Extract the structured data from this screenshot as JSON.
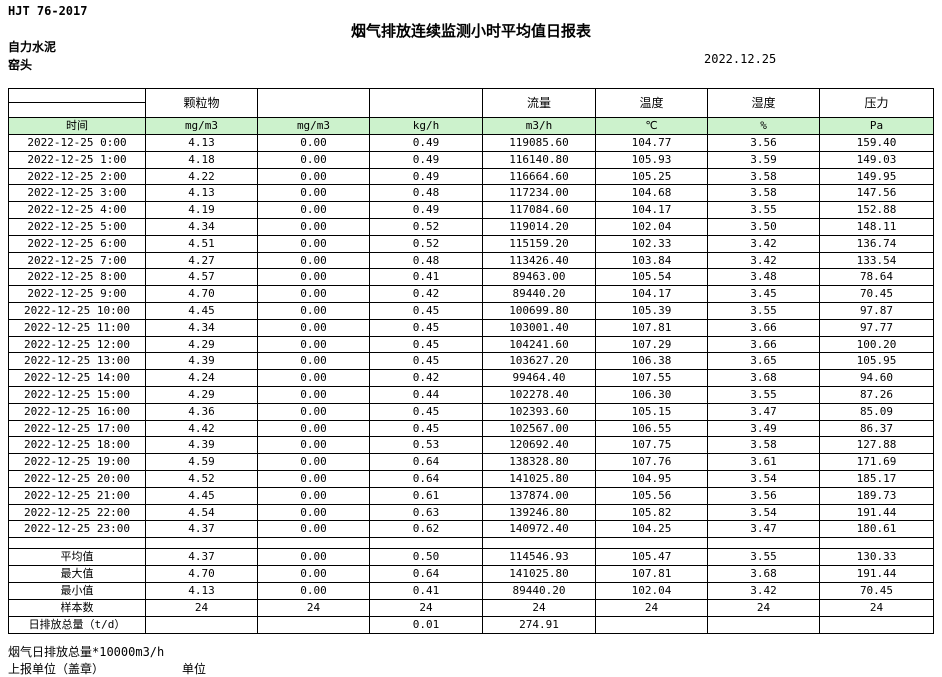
{
  "header": {
    "doc_code": "HJT  76-2017",
    "title": "烟气排放连续监测小时平均值日报表",
    "company": "自力水泥",
    "station": "窑头",
    "date": "2022.12.25"
  },
  "colors": {
    "units_row_green": "#ccf2cc",
    "grid_border": "#000000"
  },
  "table": {
    "time_header": "时间",
    "group_headers": [
      "颗粒物",
      "",
      "",
      "流量",
      "温度",
      "湿度",
      "压力"
    ],
    "units": [
      "时间",
      "mg/m3",
      "mg/m3",
      "kg/h",
      "m3/h",
      "℃",
      "%",
      "Pa"
    ],
    "rows": [
      [
        "2022-12-25 0:00",
        "4.13",
        "0.00",
        "0.49",
        "119085.60",
        "104.77",
        "3.56",
        "159.40"
      ],
      [
        "2022-12-25 1:00",
        "4.18",
        "0.00",
        "0.49",
        "116140.80",
        "105.93",
        "3.59",
        "149.03"
      ],
      [
        "2022-12-25 2:00",
        "4.22",
        "0.00",
        "0.49",
        "116664.60",
        "105.25",
        "3.58",
        "149.95"
      ],
      [
        "2022-12-25 3:00",
        "4.13",
        "0.00",
        "0.48",
        "117234.00",
        "104.68",
        "3.58",
        "147.56"
      ],
      [
        "2022-12-25 4:00",
        "4.19",
        "0.00",
        "0.49",
        "117084.60",
        "104.17",
        "3.55",
        "152.88"
      ],
      [
        "2022-12-25 5:00",
        "4.34",
        "0.00",
        "0.52",
        "119014.20",
        "102.04",
        "3.50",
        "148.11"
      ],
      [
        "2022-12-25 6:00",
        "4.51",
        "0.00",
        "0.52",
        "115159.20",
        "102.33",
        "3.42",
        "136.74"
      ],
      [
        "2022-12-25 7:00",
        "4.27",
        "0.00",
        "0.48",
        "113426.40",
        "103.84",
        "3.42",
        "133.54"
      ],
      [
        "2022-12-25 8:00",
        "4.57",
        "0.00",
        "0.41",
        "89463.00",
        "105.54",
        "3.48",
        "78.64"
      ],
      [
        "2022-12-25 9:00",
        "4.70",
        "0.00",
        "0.42",
        "89440.20",
        "104.17",
        "3.45",
        "70.45"
      ],
      [
        "2022-12-25 10:00",
        "4.45",
        "0.00",
        "0.45",
        "100699.80",
        "105.39",
        "3.55",
        "97.87"
      ],
      [
        "2022-12-25 11:00",
        "4.34",
        "0.00",
        "0.45",
        "103001.40",
        "107.81",
        "3.66",
        "97.77"
      ],
      [
        "2022-12-25 12:00",
        "4.29",
        "0.00",
        "0.45",
        "104241.60",
        "107.29",
        "3.66",
        "100.20"
      ],
      [
        "2022-12-25 13:00",
        "4.39",
        "0.00",
        "0.45",
        "103627.20",
        "106.38",
        "3.65",
        "105.95"
      ],
      [
        "2022-12-25 14:00",
        "4.24",
        "0.00",
        "0.42",
        "99464.40",
        "107.55",
        "3.68",
        "94.60"
      ],
      [
        "2022-12-25 15:00",
        "4.29",
        "0.00",
        "0.44",
        "102278.40",
        "106.30",
        "3.55",
        "87.26"
      ],
      [
        "2022-12-25 16:00",
        "4.36",
        "0.00",
        "0.45",
        "102393.60",
        "105.15",
        "3.47",
        "85.09"
      ],
      [
        "2022-12-25 17:00",
        "4.42",
        "0.00",
        "0.45",
        "102567.00",
        "106.55",
        "3.49",
        "86.37"
      ],
      [
        "2022-12-25 18:00",
        "4.39",
        "0.00",
        "0.53",
        "120692.40",
        "107.75",
        "3.58",
        "127.88"
      ],
      [
        "2022-12-25 19:00",
        "4.59",
        "0.00",
        "0.64",
        "138328.80",
        "107.76",
        "3.61",
        "171.69"
      ],
      [
        "2022-12-25 20:00",
        "4.52",
        "0.00",
        "0.64",
        "141025.80",
        "104.95",
        "3.54",
        "185.17"
      ],
      [
        "2022-12-25 21:00",
        "4.45",
        "0.00",
        "0.61",
        "137874.00",
        "105.56",
        "3.56",
        "189.73"
      ],
      [
        "2022-12-25 22:00",
        "4.54",
        "0.00",
        "0.63",
        "139246.80",
        "105.82",
        "3.54",
        "191.44"
      ],
      [
        "2022-12-25 23:00",
        "4.37",
        "0.00",
        "0.62",
        "140972.40",
        "104.25",
        "3.47",
        "180.61"
      ]
    ],
    "summary_rows": [
      [
        "平均值",
        "4.37",
        "0.00",
        "0.50",
        "114546.93",
        "105.47",
        "3.55",
        "130.33"
      ],
      [
        "最大值",
        "4.70",
        "0.00",
        "0.64",
        "141025.80",
        "107.81",
        "3.68",
        "191.44"
      ],
      [
        "最小值",
        "4.13",
        "0.00",
        "0.41",
        "89440.20",
        "102.04",
        "3.42",
        "70.45"
      ],
      [
        "样本数",
        "24",
        "24",
        "24",
        "24",
        "24",
        "24",
        "24"
      ],
      [
        "日排放总量（t/d）",
        "",
        "",
        "0.01",
        "274.91",
        "",
        "",
        ""
      ]
    ]
  },
  "footer": {
    "note": "烟气日排放总量*10000m3/h",
    "report_unit_label": "上报单位（盖章）",
    "unit_label": "单位"
  }
}
